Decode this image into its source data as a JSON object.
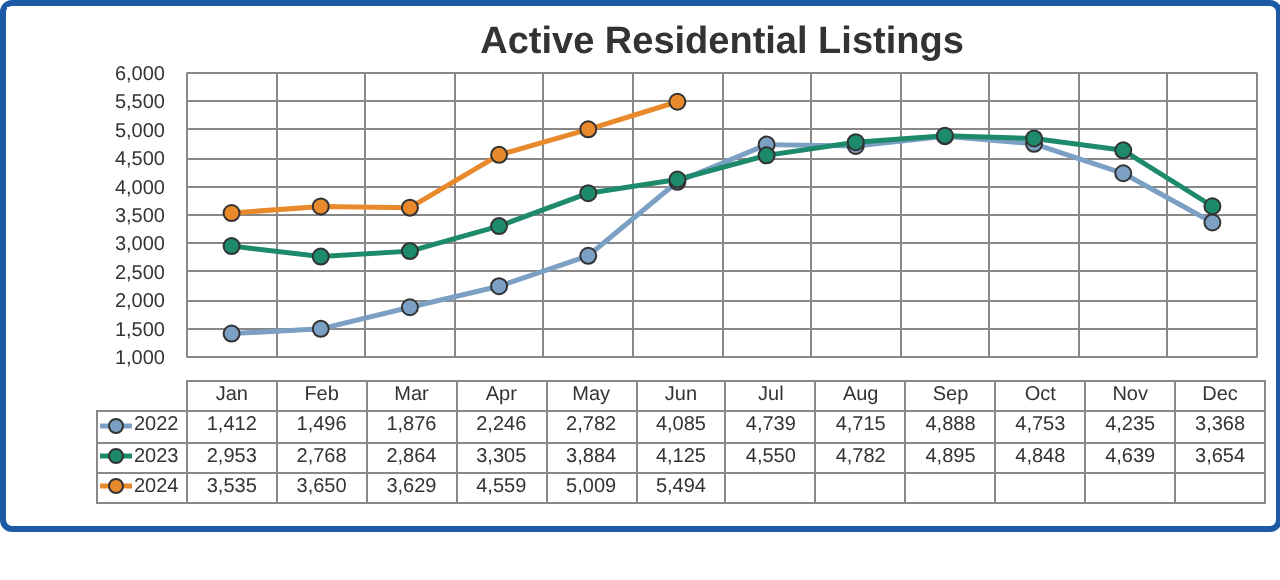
{
  "chart_data": {
    "type": "line",
    "title": "Active Residential Listings",
    "categories": [
      "Jan",
      "Feb",
      "Mar",
      "Apr",
      "May",
      "Jun",
      "Jul",
      "Aug",
      "Sep",
      "Oct",
      "Nov",
      "Dec"
    ],
    "series": [
      {
        "name": "2022",
        "color": "#7ba0c4",
        "values": [
          1412,
          1496,
          1876,
          2246,
          2782,
          4085,
          4739,
          4715,
          4888,
          4753,
          4235,
          3368
        ],
        "value_labels": [
          "1,412",
          "1,496",
          "1,876",
          "2,246",
          "2,782",
          "4,085",
          "4,739",
          "4,715",
          "4,888",
          "4,753",
          "4,235",
          "3,368"
        ]
      },
      {
        "name": "2023",
        "color": "#1e8a6c",
        "values": [
          2953,
          2768,
          2864,
          3305,
          3884,
          4125,
          4550,
          4782,
          4895,
          4848,
          4639,
          3654
        ],
        "value_labels": [
          "2,953",
          "2,768",
          "2,864",
          "3,305",
          "3,884",
          "4,125",
          "4,550",
          "4,782",
          "4,895",
          "4,848",
          "4,639",
          "3,654"
        ]
      },
      {
        "name": "2024",
        "color": "#e8892c",
        "values": [
          3535,
          3650,
          3629,
          4559,
          5009,
          5494,
          null,
          null,
          null,
          null,
          null,
          null
        ],
        "value_labels": [
          "3,535",
          "3,650",
          "3,629",
          "4,559",
          "5,009",
          "5,494",
          null,
          null,
          null,
          null,
          null,
          null
        ]
      }
    ],
    "ylim": [
      1000,
      6000
    ],
    "yticks": [
      {
        "value": 1000,
        "label": "1,000"
      },
      {
        "value": 1500,
        "label": "1,500"
      },
      {
        "value": 2000,
        "label": "2,000"
      },
      {
        "value": 2500,
        "label": "2,500"
      },
      {
        "value": 3000,
        "label": "3,000"
      },
      {
        "value": 3500,
        "label": "3,500"
      },
      {
        "value": 4000,
        "label": "4,000"
      },
      {
        "value": 4500,
        "label": "4,500"
      },
      {
        "value": 5000,
        "label": "5,000"
      },
      {
        "value": 5500,
        "label": "5,500"
      },
      {
        "value": 6000,
        "label": "6,000"
      }
    ],
    "grid": true,
    "legend": "bottom",
    "marker": "circle",
    "line_style": "solid"
  }
}
